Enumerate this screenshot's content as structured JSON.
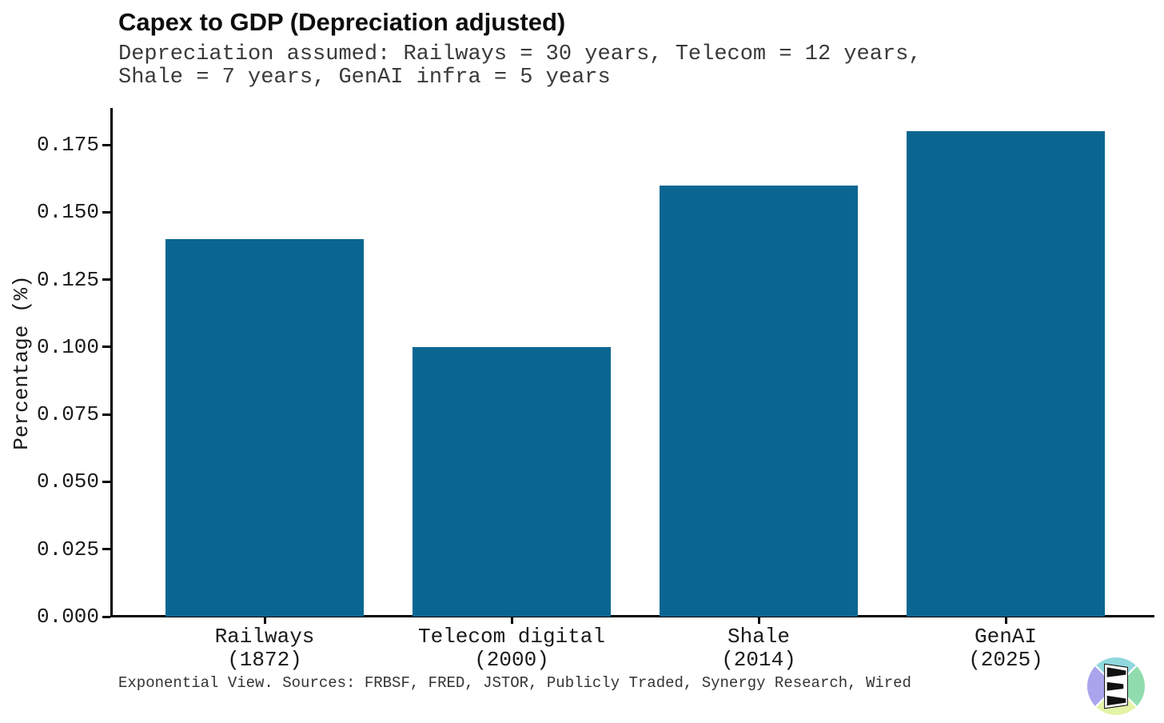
{
  "header": {
    "title": "Capex to GDP (Depreciation adjusted)",
    "subtitle": "Depreciation assumed: Railways = 30 years, Telecom = 12 years,\nShale = 7 years, GenAI infra = 5 years"
  },
  "footer": {
    "text": "Exponential View. Sources: FRBSF, FRED, JSTOR, Publicly Traded, Synergy Research, Wired"
  },
  "chart_data": {
    "type": "bar",
    "title": "Capex to GDP (Depreciation adjusted)",
    "subtitle": "Depreciation assumed: Railways = 30 years, Telecom = 12 years, Shale = 7 years, GenAI infra = 5 years",
    "categories": [
      "Railways\n(1872)",
      "Telecom digital\n(2000)",
      "Shale\n(2014)",
      "GenAI\n(2025)"
    ],
    "values": [
      0.14,
      0.1,
      0.16,
      0.18
    ],
    "bar_color": "#0a6690",
    "xlabel": "",
    "ylabel": "Percentage (%)",
    "ylim": [
      0,
      0.189
    ],
    "ytick_labels": [
      "0.000",
      "0.025",
      "0.050",
      "0.075",
      "0.100",
      "0.125",
      "0.150",
      "0.175"
    ],
    "grid": false,
    "legend": false,
    "source_note": "Exponential View. Sources: FRBSF, FRED, JSTOR, Publicly Traded, Synergy Research, Wired"
  },
  "logo": {
    "name": "Exponential View",
    "colors": {
      "top": "#8fd8de",
      "right": "#90dcae",
      "bottom": "#e3f4a6",
      "left": "#a9a4ec",
      "glyph": "#111111",
      "panel": "#ffffff"
    }
  }
}
